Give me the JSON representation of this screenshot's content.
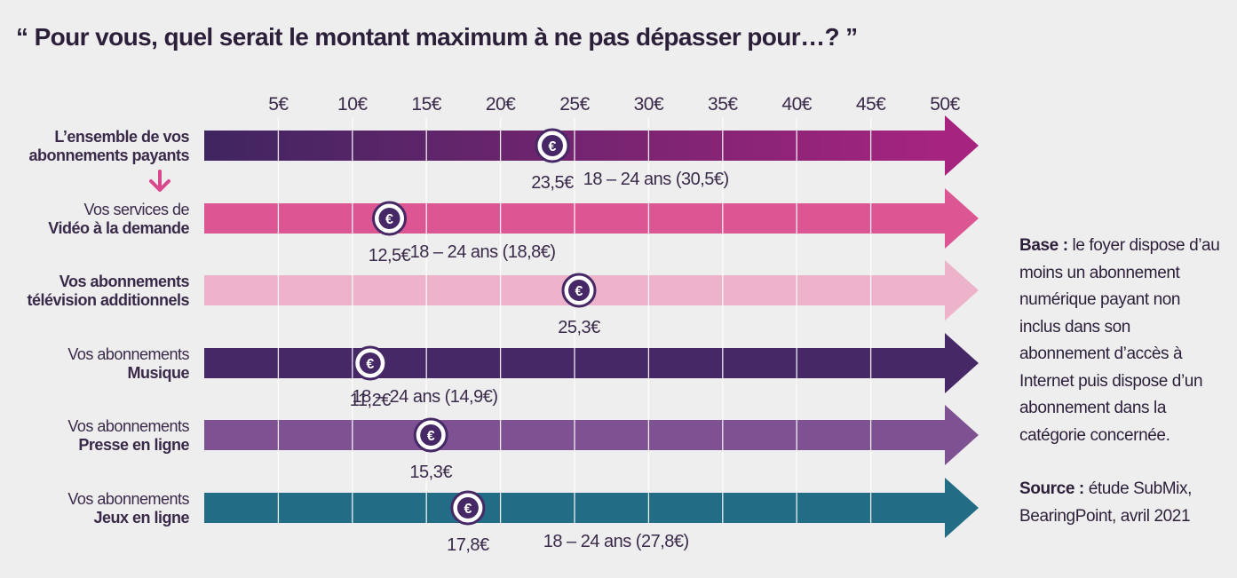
{
  "title": "“ Pour vous, quel serait le montant maximum à ne pas dépasser pour…? ”",
  "base_note": {
    "label": "Base :",
    "text": " le foyer dispose d’au moins un abonnement numérique payant non inclus dans son abonnement d’accès à Internet puis dispose d’un abonnement dans la catégorie concernée."
  },
  "source_note": {
    "label": "Source :",
    "text": " étude SubMix, BearingPoint, avril 2021"
  },
  "colors": {
    "background": "#efeeee",
    "text": "#3a2a4a",
    "grid": "#ffffff",
    "arrow_indicator": "#d9478c"
  },
  "chart_data": {
    "type": "bar",
    "xlim": [
      0,
      50
    ],
    "ticks": [
      5,
      10,
      15,
      20,
      25,
      30,
      35,
      40,
      45,
      50
    ],
    "tick_labels": [
      "5€",
      "10€",
      "15€",
      "20€",
      "25€",
      "30€",
      "35€",
      "40€",
      "45€",
      "50€"
    ],
    "grid": true,
    "marker_icon": "euro-coin-icon",
    "rows": [
      {
        "label_line1": "L’ensemble de vos",
        "label_line2": "abonnements payants",
        "line1_bold": true,
        "value": 23.5,
        "value_label": "23,5€",
        "youth_value": 30.5,
        "youth_label": "18 – 24 ans (30,5€)",
        "color": "#7a2870",
        "gradient": [
          "#3f2560",
          "#a6247f"
        ]
      },
      {
        "label_line1": "Vos services de",
        "label_line2": "Vidéo à la demande",
        "line1_bold": false,
        "value": 12.5,
        "value_label": "12,5€",
        "youth_value": 18.8,
        "youth_label": "18 – 24 ans (18,8€)",
        "color": "#dd5694"
      },
      {
        "label_line1": "Vos abonnements",
        "label_line2": "télévision additionnels",
        "line1_bold": true,
        "value": 25.3,
        "value_label": "25,3€",
        "youth_value": null,
        "youth_label": "",
        "color": "#edb3cb"
      },
      {
        "label_line1": "Vos abonnements",
        "label_line2": "Musique",
        "line1_bold": false,
        "value": 11.2,
        "value_label": "11,2€",
        "youth_value": 14.9,
        "youth_label": "18 – 24 ans (14,9€)",
        "color": "#452865"
      },
      {
        "label_line1": "Vos abonnements",
        "label_line2": "Presse en ligne",
        "line1_bold": false,
        "value": 15.3,
        "value_label": "15,3€",
        "youth_value": null,
        "youth_label": "",
        "color": "#7e5192"
      },
      {
        "label_line1": "Vos abonnements",
        "label_line2": "Jeux en ligne",
        "line1_bold": false,
        "value": 17.8,
        "value_label": "17,8€",
        "youth_value": 27.8,
        "youth_label": "18 – 24 ans (27,8€)",
        "color": "#236c85"
      }
    ]
  }
}
